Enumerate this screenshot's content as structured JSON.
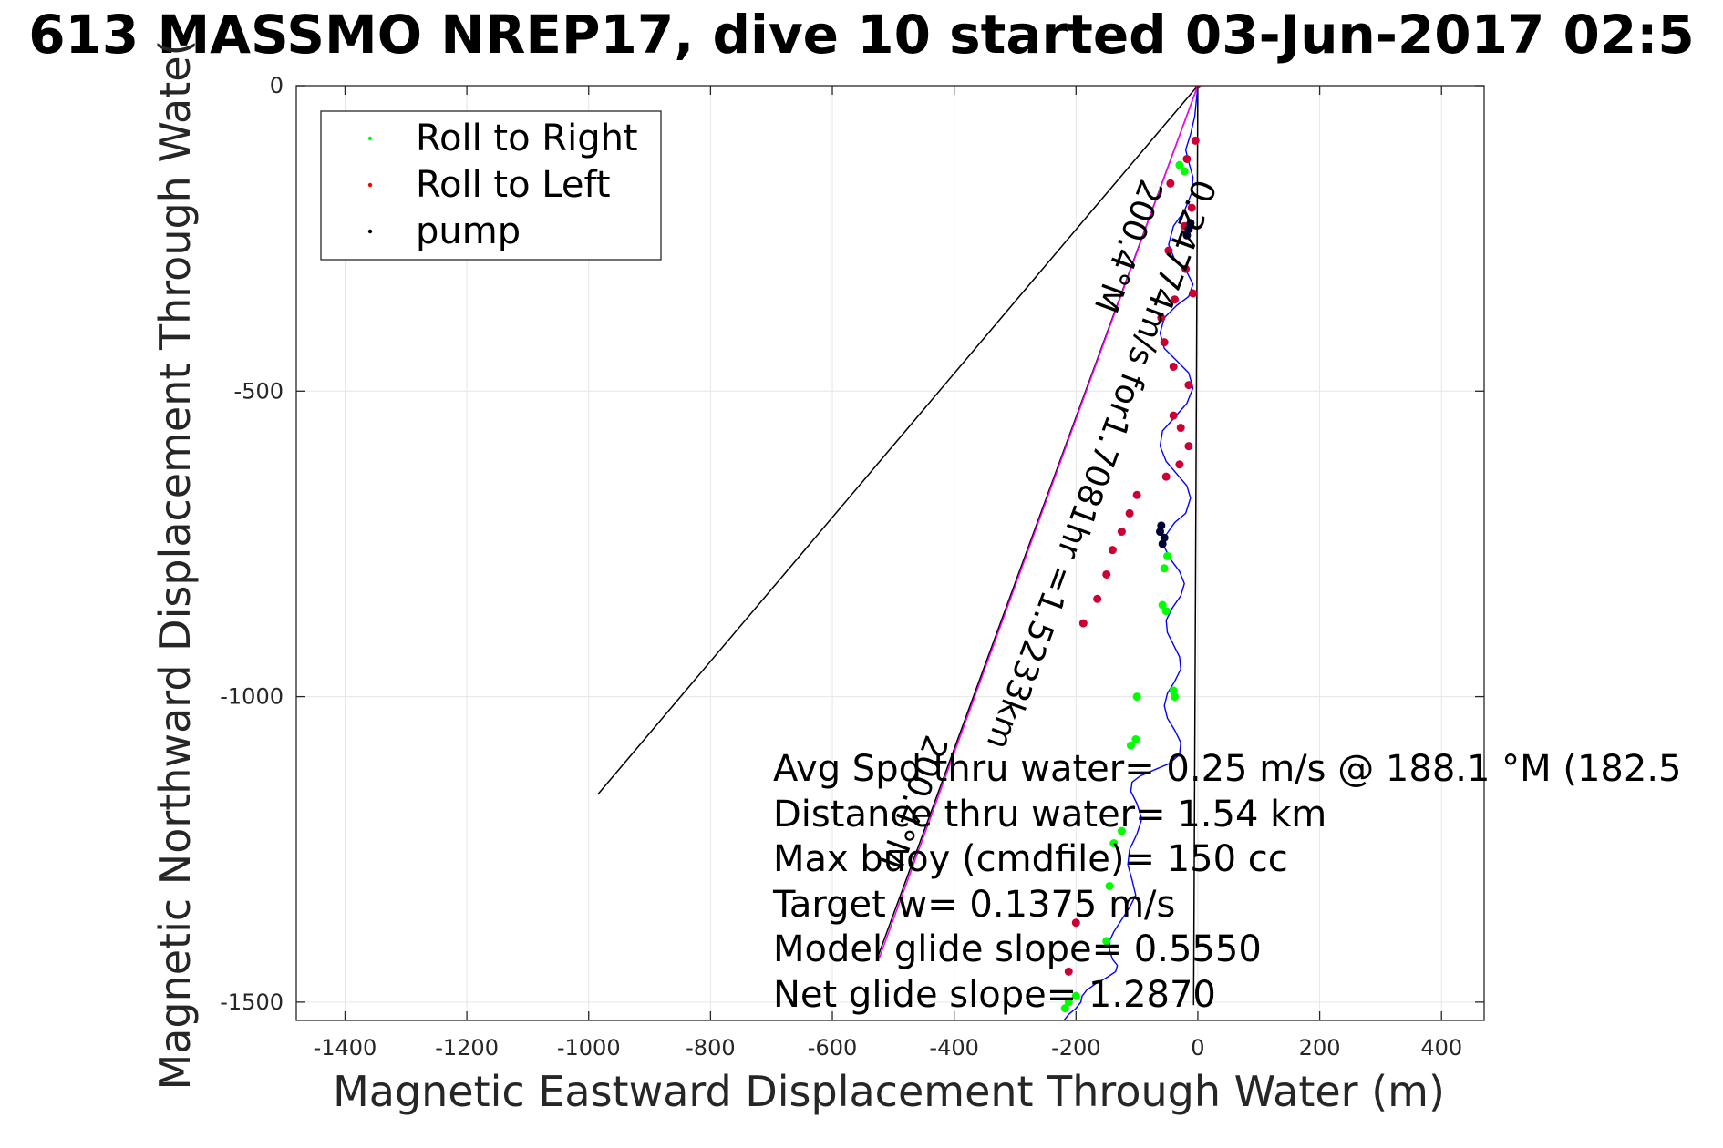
{
  "chart_data": {
    "type": "line",
    "title": "613 MASSMO NREP17, dive 10 started 03-Jun-2017 02:5",
    "xlabel": "Magnetic Eastward Displacement Through Water (m)",
    "ylabel": "Magnetic Northward Displacement Through Wate(",
    "xlim": [
      -1480,
      470
    ],
    "ylim": [
      -1530,
      0
    ],
    "xticks": [
      -1400,
      -1200,
      -1000,
      -800,
      -600,
      -400,
      -200,
      0,
      200,
      400
    ],
    "yticks": [
      0,
      -500,
      -1000,
      -1500
    ],
    "grid": true,
    "legend": {
      "placement": "top-left",
      "entries": [
        {
          "label": "Roll to Right",
          "color": "#00ff00"
        },
        {
          "label": "Roll to Left",
          "color": "#ff0000"
        },
        {
          "label": "pump",
          "color": "#000000"
        }
      ]
    },
    "series": [
      {
        "role": "track",
        "color": "#0000ff",
        "x": [
          0,
          -2,
          -5,
          -12,
          -20,
          -15,
          -8,
          -10,
          -22,
          -40,
          -48,
          -38,
          -18,
          -8,
          -15,
          -35,
          -55,
          -62,
          -55,
          -35,
          -15,
          -8,
          -18,
          -40,
          -58,
          -62,
          -52,
          -35,
          -18,
          -12,
          -20,
          -38,
          -52,
          -55,
          -45,
          -30,
          -22,
          -28,
          -42,
          -52,
          -50,
          -40,
          -30,
          -28,
          -38,
          -50,
          -55,
          -50,
          -38,
          -28,
          -30,
          -48,
          -72,
          -95,
          -108,
          -110,
          -100,
          -92,
          -100,
          -112,
          -115,
          -108,
          -102,
          -112,
          -125,
          -138,
          -145,
          -145,
          -140,
          -132,
          -135,
          -150,
          -168,
          -182,
          -190,
          -192,
          -200,
          -212,
          -220,
          -218
        ],
        "y": [
          0,
          -20,
          -50,
          -80,
          -105,
          -125,
          -150,
          -175,
          -205,
          -230,
          -260,
          -285,
          -305,
          -325,
          -345,
          -360,
          -380,
          -405,
          -430,
          -450,
          -470,
          -495,
          -520,
          -545,
          -565,
          -590,
          -615,
          -635,
          -655,
          -675,
          -700,
          -715,
          -735,
          -755,
          -775,
          -795,
          -815,
          -835,
          -855,
          -875,
          -895,
          -915,
          -935,
          -955,
          -975,
          -995,
          -1015,
          -1035,
          -1055,
          -1075,
          -1095,
          -1110,
          -1120,
          -1130,
          -1140,
          -1155,
          -1175,
          -1200,
          -1225,
          -1250,
          -1275,
          -1300,
          -1325,
          -1345,
          -1365,
          -1385,
          -1400,
          -1415,
          -1430,
          -1440,
          -1450,
          -1460,
          -1470,
          -1480,
          -1490,
          -1500,
          -1510,
          -1520,
          -1530,
          -1540
        ]
      },
      {
        "role": "line",
        "color": "#000000",
        "x": [
          0,
          -985
        ],
        "y": [
          0,
          -1160
        ]
      },
      {
        "role": "line",
        "color": "#000000",
        "x": [
          0,
          -525
        ],
        "y": [
          0,
          -1425
        ]
      },
      {
        "role": "line",
        "color": "#ff00ff",
        "x": [
          0,
          -523
        ],
        "y": [
          0,
          -1428
        ]
      },
      {
        "role": "line",
        "color": "#000000",
        "x": [
          0,
          -7
        ],
        "y": [
          0,
          -1505
        ]
      }
    ],
    "markers": [
      {
        "type": "Roll to Left",
        "color": "#cc0033",
        "x": [
          -4,
          -18,
          -45,
          -10,
          -22,
          -48,
          -20,
          -8,
          -38,
          -60,
          -55,
          -40,
          -15,
          -40,
          -28,
          -15,
          -30,
          -52,
          -100,
          -112,
          -125,
          -140,
          -150,
          -165,
          -188,
          -200,
          -212
        ],
        "y": [
          -90,
          -120,
          -160,
          -200,
          -230,
          -270,
          -300,
          -340,
          -350,
          -380,
          -420,
          -460,
          -490,
          -540,
          -560,
          -590,
          -620,
          -640,
          -670,
          -700,
          -730,
          -760,
          -800,
          -840,
          -880,
          -1370,
          -1450
        ]
      },
      {
        "type": "Roll to Right",
        "color": "#00ff00",
        "x": [
          -30,
          -22,
          -50,
          -55,
          -58,
          -52,
          -40,
          -38,
          -100,
          -102,
          -110,
          -125,
          -138,
          -145,
          -150,
          -200,
          -212,
          -218
        ],
        "y": [
          -130,
          -140,
          -770,
          -790,
          -850,
          -860,
          -990,
          -1000,
          -1000,
          -1070,
          -1080,
          -1220,
          -1240,
          -1310,
          -1400,
          -1490,
          -1500,
          -1510
        ]
      },
      {
        "type": "pump",
        "color": "#000033",
        "x": [
          -12,
          -15,
          -18,
          -60,
          -62,
          -55,
          -58
        ],
        "y": [
          -225,
          -235,
          -245,
          -720,
          -730,
          -740,
          -750
        ]
      }
    ],
    "line_labels": [
      {
        "text": "0.24774m/s for1.7081hr =1.5233km",
        "x": -5,
        "y": -150
      },
      {
        "text": "200.4°M",
        "x": -92,
        "y": -150
      },
      {
        "text": "200.4°M",
        "x": -445,
        "y": -1060
      }
    ],
    "origin_marker": {
      "color": "#ff0000",
      "x": 0,
      "y": 0
    },
    "annotations": [
      "Avg Spd thru water=  0.25 m/s @ 188.1 °M (182.5",
      "Distance thru water=  1.54 km",
      "Max buoy (cmdfile)= 150 cc",
      "Target w= 0.1375 m/s",
      "Model glide slope= 0.5550",
      "Net glide slope= 1.2870"
    ]
  }
}
